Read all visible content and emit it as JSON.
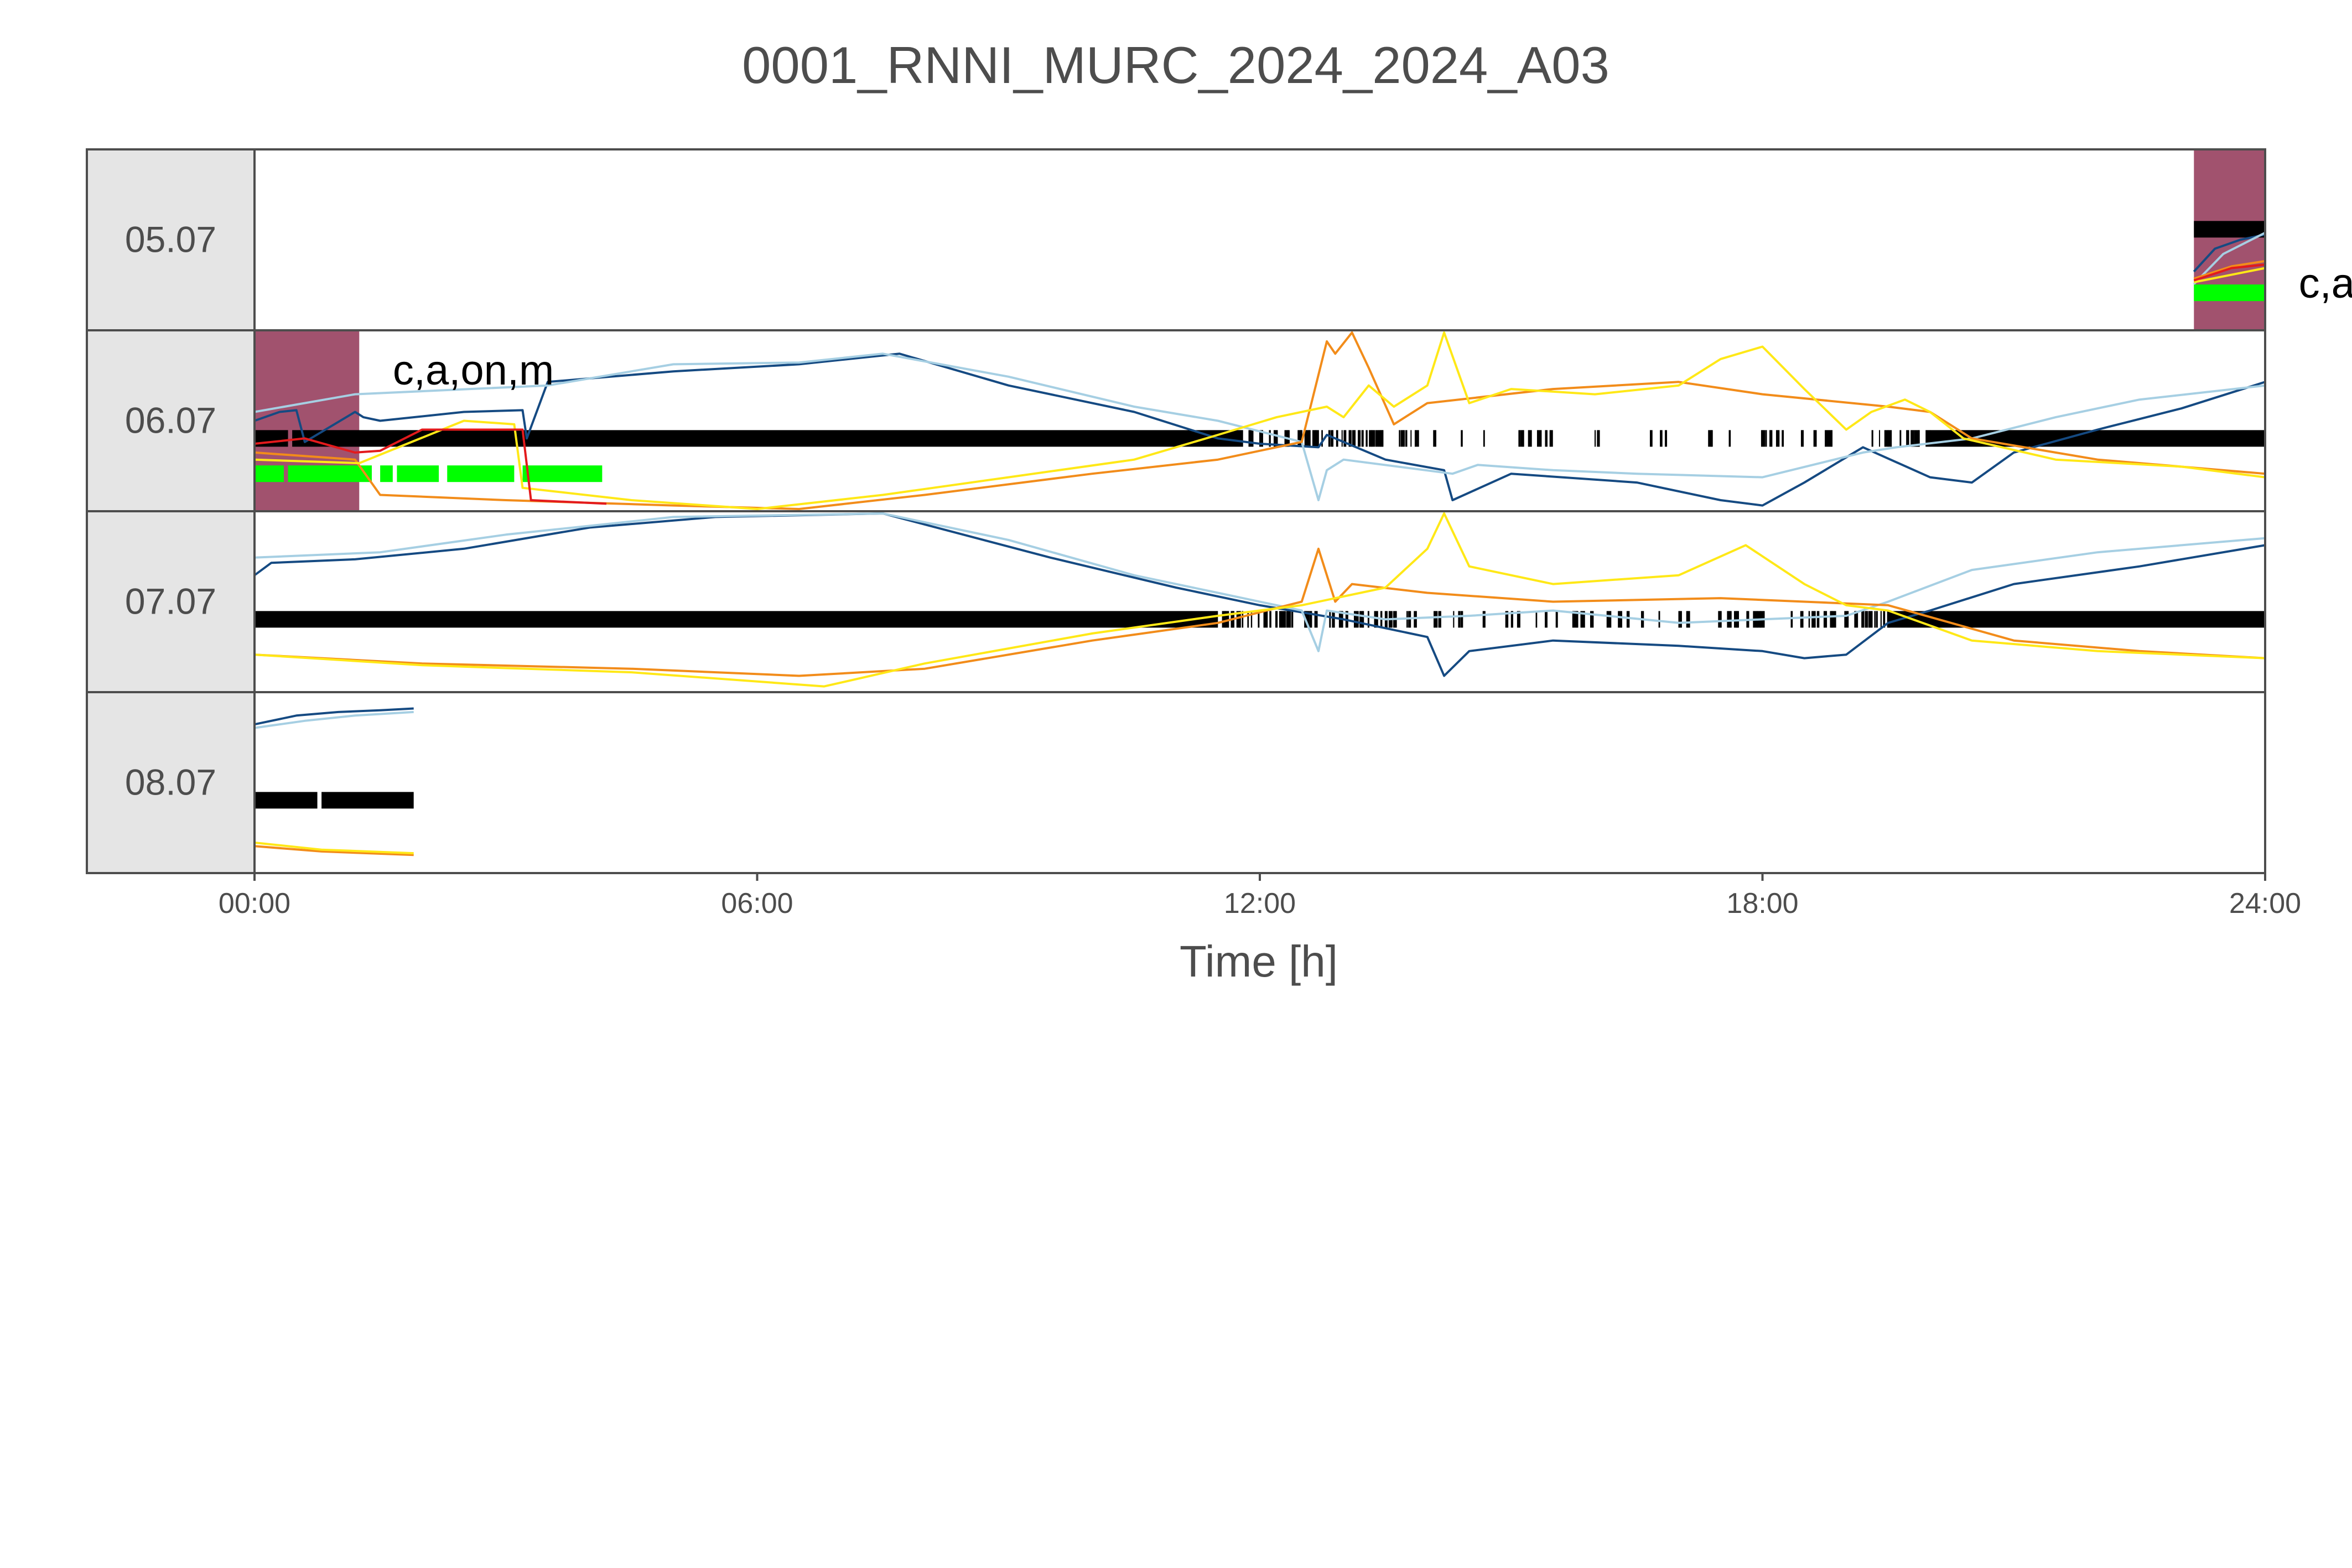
{
  "chart_data": {
    "type": "line",
    "title": "0001_RNNI_MURC_2024_2024_A03",
    "xlabel": "Time [h]",
    "ylabel": "",
    "xlim": [
      0,
      24
    ],
    "x_ticks": [
      0,
      6,
      12,
      18,
      24
    ],
    "x_tick_labels": [
      "00:00",
      "06:00",
      "12:00",
      "18:00",
      "24:00"
    ],
    "grid": false,
    "facet_layout": "rows by day, strip labels on left",
    "colors": {
      "navy": "#154a82",
      "light_blue": "#a6cfe3",
      "orange": "#f28c1a",
      "yellow": "#ffe817",
      "red": "#e31a1c",
      "bouts": "#000000",
      "green": "#00ff00",
      "highlight": "#a1526e",
      "strip_bg": "#e5e5e5",
      "frame": "#4d4d4d"
    },
    "series_order": [
      "navy",
      "light_blue",
      "orange",
      "yellow",
      "red"
    ],
    "panels": [
      {
        "day": "05.07",
        "highlights": [
          [
            23.15,
            24
          ]
        ],
        "annotations": [
          {
            "text": "c,a",
            "x": 24.4,
            "y": 0.82
          }
        ],
        "black_bar": {
          "y": 0.44,
          "segments": [
            [
              23.15,
              24
            ]
          ]
        },
        "green_bar": {
          "y": 0.8,
          "segments": [
            [
              23.15,
              24
            ]
          ]
        },
        "series": {
          "navy": {
            "x": [
              23.15,
              23.4,
              23.7,
              24.0
            ],
            "y": [
              0.68,
              0.55,
              0.5,
              0.47
            ]
          },
          "light_blue": {
            "x": [
              23.15,
              23.5,
              24.0
            ],
            "y": [
              0.75,
              0.58,
              0.46
            ]
          },
          "orange": {
            "x": [
              23.15,
              23.6,
              24.0
            ],
            "y": [
              0.72,
              0.65,
              0.62
            ]
          },
          "yellow": {
            "x": [
              23.15,
              24.0
            ],
            "y": [
              0.74,
              0.66
            ]
          },
          "red": {
            "x": [
              23.15,
              23.6,
              24.0
            ],
            "y": [
              0.73,
              0.66,
              0.64
            ]
          }
        }
      },
      {
        "day": "06.07",
        "highlights": [
          [
            0,
            1.25
          ]
        ],
        "annotations": [
          {
            "text": "c,a,on,m",
            "x": 1.65,
            "y": 0.3
          }
        ],
        "black_bar": {
          "y": 0.6,
          "segments": [
            [
              0,
              0.4
            ],
            [
              0.45,
              11.8
            ],
            [
              20.0,
              24
            ]
          ],
          "sparse": [
            [
              11.8,
              13.9,
              0.55
            ],
            [
              13.9,
              19.3,
              0.25
            ],
            [
              19.3,
              20.0,
              0.7
            ]
          ]
        },
        "green_bar": {
          "y": 0.8,
          "segments": [
            [
              0,
              0.35
            ],
            [
              0.4,
              1.4
            ],
            [
              1.5,
              1.65
            ],
            [
              1.7,
              2.2
            ],
            [
              2.3,
              3.1
            ],
            [
              3.2,
              4.15
            ]
          ]
        },
        "series": {
          "navy": {
            "x": [
              0,
              0.3,
              0.5,
              0.6,
              1.2,
              1.3,
              1.5,
              2.5,
              3.2,
              3.25,
              3.5,
              5.0,
              6.5,
              7.7,
              9.0,
              10.5,
              11.5,
              12.0,
              12.7,
              12.8,
              13.5,
              14.2,
              14.3,
              15.0,
              16.5,
              17.5,
              18.0,
              18.5,
              19.2,
              20.0,
              20.5,
              21.0,
              22.0,
              23.0,
              24.0
            ],
            "y": [
              0.5,
              0.45,
              0.44,
              0.62,
              0.45,
              0.48,
              0.5,
              0.45,
              0.44,
              0.6,
              0.28,
              0.22,
              0.18,
              0.12,
              0.3,
              0.45,
              0.6,
              0.63,
              0.65,
              0.58,
              0.72,
              0.78,
              0.95,
              0.8,
              0.85,
              0.95,
              0.98,
              0.85,
              0.65,
              0.82,
              0.85,
              0.68,
              0.55,
              0.43,
              0.28
            ]
          },
          "light_blue": {
            "x": [
              0,
              1.2,
              3.5,
              5.0,
              6.5,
              7.5,
              9.0,
              10.5,
              11.5,
              12.5,
              12.7,
              12.8,
              13.0,
              14.3,
              14.6,
              15.5,
              16.5,
              18.0,
              19.2,
              19.6,
              20.5,
              21.5,
              22.5,
              24.0
            ],
            "y": [
              0.45,
              0.35,
              0.3,
              0.18,
              0.17,
              0.12,
              0.25,
              0.42,
              0.5,
              0.62,
              0.95,
              0.78,
              0.72,
              0.8,
              0.75,
              0.78,
              0.8,
              0.82,
              0.68,
              0.65,
              0.6,
              0.48,
              0.38,
              0.3
            ]
          },
          "orange": {
            "x": [
              0,
              1.2,
              1.5,
              3.0,
              5.0,
              6.5,
              8.0,
              10.0,
              11.5,
              12.5,
              12.8,
              12.9,
              13.1,
              13.3,
              13.6,
              14.0,
              15.5,
              17.0,
              18.0,
              19.5,
              20.0,
              20.5,
              22.0,
              24.0
            ],
            "y": [
              0.68,
              0.72,
              0.92,
              0.95,
              0.98,
              1.0,
              0.92,
              0.8,
              0.72,
              0.62,
              0.05,
              0.12,
              0.0,
              0.2,
              0.52,
              0.4,
              0.32,
              0.28,
              0.35,
              0.42,
              0.45,
              0.6,
              0.72,
              0.8
            ]
          },
          "yellow": {
            "x": [
              0,
              1.25,
              2.5,
              3.1,
              3.2,
              4.5,
              6.0,
              7.5,
              9.0,
              10.5,
              11.5,
              12.2,
              12.8,
              13.0,
              13.3,
              13.6,
              14.0,
              14.2,
              14.5,
              15.0,
              16.0,
              17.0,
              17.5,
              18.0,
              18.5,
              19.0,
              19.3,
              19.7,
              20.0,
              20.4,
              21.5,
              23.0,
              24.0
            ],
            "y": [
              0.72,
              0.74,
              0.5,
              0.52,
              0.88,
              0.95,
              1.0,
              0.92,
              0.82,
              0.72,
              0.58,
              0.48,
              0.42,
              0.48,
              0.3,
              0.42,
              0.3,
              0.0,
              0.4,
              0.32,
              0.35,
              0.3,
              0.15,
              0.08,
              0.32,
              0.55,
              0.45,
              0.38,
              0.45,
              0.6,
              0.72,
              0.76,
              0.82
            ]
          },
          "red": {
            "x": [
              0,
              0.6,
              1.2,
              1.5,
              2.0,
              3.2,
              3.3,
              4.2
            ],
            "y": [
              0.63,
              0.6,
              0.68,
              0.67,
              0.55,
              0.55,
              0.95,
              0.97
            ]
          }
        }
      },
      {
        "day": "07.07",
        "highlights": [],
        "annotations": [],
        "black_bar": {
          "y": 0.6,
          "segments": [
            [
              0,
              11.5
            ],
            [
              19.5,
              24
            ]
          ],
          "sparse": [
            [
              11.5,
              13.8,
              0.6
            ],
            [
              13.8,
              18.3,
              0.3
            ],
            [
              18.3,
              19.5,
              0.65
            ]
          ]
        },
        "green_bar": null,
        "series": {
          "navy": {
            "x": [
              0,
              0.2,
              1.2,
              2.5,
              4.0,
              5.5,
              7.5,
              9.5,
              11.0,
              12.0,
              13.0,
              14.0,
              14.2,
              14.5,
              15.5,
              17.0,
              18.0,
              18.5,
              19.0,
              19.5,
              20.0,
              21.0,
              22.5,
              24.0
            ],
            "y": [
              0.35,
              0.28,
              0.26,
              0.2,
              0.08,
              0.02,
              0.0,
              0.25,
              0.42,
              0.52,
              0.6,
              0.7,
              0.92,
              0.78,
              0.72,
              0.75,
              0.78,
              0.82,
              0.8,
              0.62,
              0.55,
              0.4,
              0.3,
              0.18
            ]
          },
          "light_blue": {
            "x": [
              0,
              1.5,
              3.0,
              5.0,
              7.5,
              9.0,
              10.5,
              11.5,
              12.5,
              12.7,
              12.8,
              13.5,
              14.5,
              15.5,
              17.0,
              18.0,
              19.0,
              19.5,
              20.5,
              22.0,
              24.0
            ],
            "y": [
              0.25,
              0.22,
              0.12,
              0.02,
              0.0,
              0.15,
              0.35,
              0.45,
              0.55,
              0.78,
              0.55,
              0.6,
              0.58,
              0.55,
              0.62,
              0.6,
              0.58,
              0.5,
              0.32,
              0.22,
              0.14
            ]
          },
          "orange": {
            "x": [
              0,
              2.0,
              4.5,
              6.5,
              8.0,
              10.0,
              11.5,
              12.5,
              12.7,
              12.9,
              13.1,
              14.0,
              15.5,
              17.5,
              18.5,
              19.5,
              21.0,
              22.5,
              24.0
            ],
            "y": [
              0.8,
              0.85,
              0.88,
              0.92,
              0.88,
              0.72,
              0.62,
              0.5,
              0.2,
              0.5,
              0.4,
              0.45,
              0.5,
              0.48,
              0.5,
              0.52,
              0.72,
              0.78,
              0.82
            ]
          },
          "yellow": {
            "x": [
              0,
              2.0,
              4.5,
              6.8,
              8.0,
              10.0,
              11.5,
              12.5,
              13.5,
              14.0,
              14.2,
              14.5,
              15.5,
              17.0,
              17.8,
              18.5,
              19.0,
              19.5,
              20.5,
              22.0,
              24.0
            ],
            "y": [
              0.8,
              0.86,
              0.9,
              0.98,
              0.85,
              0.68,
              0.58,
              0.52,
              0.42,
              0.2,
              0.0,
              0.3,
              0.4,
              0.35,
              0.18,
              0.4,
              0.52,
              0.55,
              0.72,
              0.78,
              0.82
            ]
          },
          "red": {
            "x": [],
            "y": []
          }
        }
      },
      {
        "day": "08.07",
        "highlights": [],
        "annotations": [],
        "black_bar": {
          "y": 0.6,
          "segments": [
            [
              0,
              0.75
            ],
            [
              0.8,
              1.9
            ]
          ]
        },
        "green_bar": null,
        "series": {
          "navy": {
            "x": [
              0,
              0.5,
              1.0,
              1.5,
              1.9
            ],
            "y": [
              0.17,
              0.12,
              0.1,
              0.09,
              0.08
            ]
          },
          "light_blue": {
            "x": [
              0,
              0.6,
              1.2,
              1.9
            ],
            "y": [
              0.19,
              0.15,
              0.12,
              0.1
            ]
          },
          "orange": {
            "x": [
              0,
              0.8,
              1.9
            ],
            "y": [
              0.86,
              0.89,
              0.91
            ]
          },
          "yellow": {
            "x": [
              0,
              0.8,
              1.9
            ],
            "y": [
              0.84,
              0.88,
              0.9
            ]
          },
          "red": {
            "x": [],
            "y": []
          }
        }
      }
    ]
  }
}
